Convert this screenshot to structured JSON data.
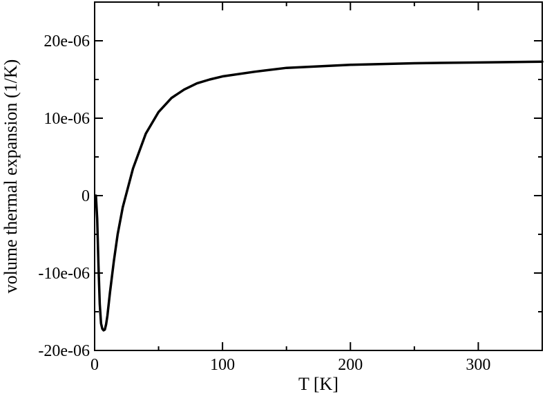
{
  "chart_data": {
    "type": "line",
    "title": "",
    "xlabel": "T [K]",
    "ylabel": "volume thermal expansion (1/K)",
    "xlim": [
      0,
      350
    ],
    "ylim": [
      -2e-05,
      2.5e-05
    ],
    "x_ticks": [
      {
        "value": 0,
        "label": "0"
      },
      {
        "value": 100,
        "label": "100"
      },
      {
        "value": 200,
        "label": "200"
      },
      {
        "value": 300,
        "label": "300"
      }
    ],
    "y_ticks": [
      {
        "value": -2e-05,
        "label": "-20e-06"
      },
      {
        "value": -1e-05,
        "label": "-10e-06"
      },
      {
        "value": 0,
        "label": "0"
      },
      {
        "value": 1e-05,
        "label": "10e-06"
      },
      {
        "value": 2e-05,
        "label": "20e-06"
      }
    ],
    "grid": false,
    "series": [
      {
        "color": "#000000",
        "x": [
          1,
          2,
          3,
          4,
          5,
          6,
          7,
          8,
          9,
          10,
          12,
          15,
          18,
          22,
          26,
          30,
          40,
          50,
          60,
          70,
          80,
          90,
          100,
          125,
          150,
          200,
          250,
          300,
          350
        ],
        "y": [
          0,
          -3e-06,
          -9e-06,
          -1.4e-05,
          -1.65e-05,
          -1.72e-05,
          -1.74e-05,
          -1.73e-05,
          -1.66e-05,
          -1.55e-05,
          -1.25e-05,
          -8.5e-06,
          -5e-06,
          -1.5e-06,
          1e-06,
          3.5e-06,
          8e-06,
          1.08e-05,
          1.26e-05,
          1.37e-05,
          1.45e-05,
          1.5e-05,
          1.54e-05,
          1.6e-05,
          1.65e-05,
          1.69e-05,
          1.71e-05,
          1.72e-05,
          1.73e-05
        ]
      }
    ]
  }
}
